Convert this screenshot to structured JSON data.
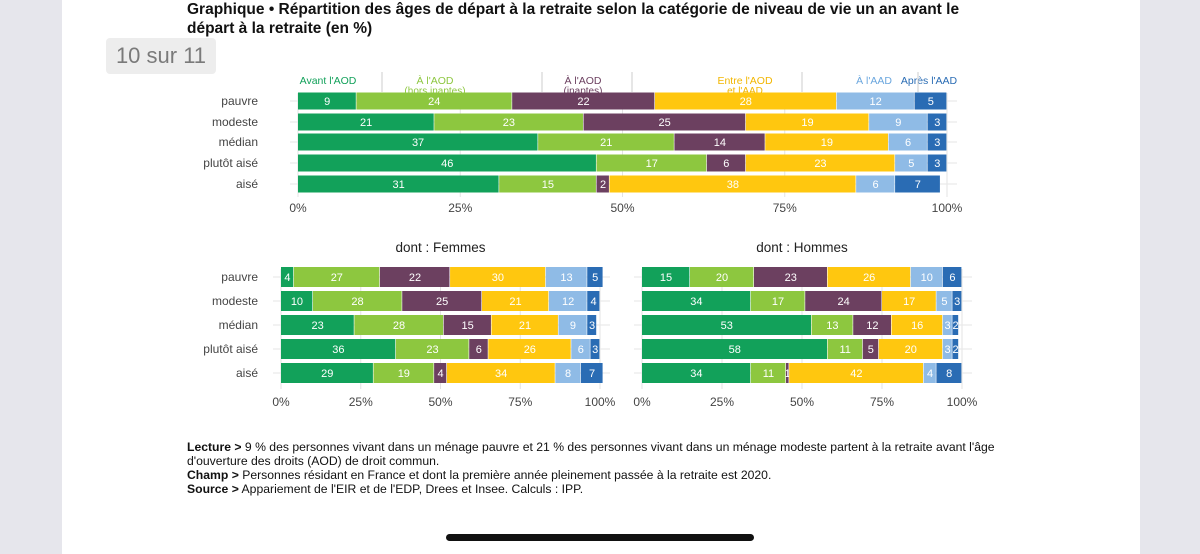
{
  "page": {
    "title": "Graphique • Répartition des âges de départ à la retraite selon la catégorie de niveau de vie un an avant le départ à la retraite (en %)",
    "indicator": "10 sur 11"
  },
  "colors": {
    "avant_aod": "#12a15a",
    "aod_hors_inaptes": "#8dc73f",
    "aod_inaptes": "#6c4060",
    "entre_aod_aad": "#ffc70f",
    "aad": "#8fbbe6",
    "apres_aad": "#2a6cb4",
    "label_inaptes": "#6c4060",
    "label_avant": "#12a15a",
    "label_hors": "#8dc73f",
    "label_entre": "#f2b600",
    "label_aad": "#6aa6de",
    "label_apres": "#2a6cb4"
  },
  "legend": [
    {
      "label": "Avant l'AOD",
      "color": "#12a15a"
    },
    {
      "label": "À l'AOD\n(hors inaptes)",
      "color": "#8dc73f"
    },
    {
      "label": "À l'AOD\n(inaptes)",
      "color": "#6c4060"
    },
    {
      "label": "Entre l'AOD\net l'AAD",
      "color": "#f2b600"
    },
    {
      "label": "À l'AAD",
      "color": "#6aa6de"
    },
    {
      "label": "Après l'AAD",
      "color": "#2a6cb4"
    }
  ],
  "chart_data": [
    {
      "type": "bar",
      "orientation": "horizontal",
      "stacked": true,
      "title": "",
      "categories": [
        "pauvre",
        "modeste",
        "médian",
        "plutôt aisé",
        "aisé"
      ],
      "xlim": [
        0,
        100
      ],
      "x_ticks": [
        "0%",
        "25%",
        "50%",
        "75%",
        "100%"
      ],
      "values": [
        [
          9,
          24,
          22,
          28,
          12,
          5
        ],
        [
          21,
          23,
          25,
          19,
          9,
          3
        ],
        [
          37,
          21,
          14,
          19,
          6,
          3
        ],
        [
          46,
          17,
          6,
          23,
          5,
          3
        ],
        [
          31,
          15,
          2,
          38,
          6,
          7
        ]
      ]
    },
    {
      "type": "bar",
      "orientation": "horizontal",
      "stacked": true,
      "title": "dont : Femmes",
      "categories": [
        "pauvre",
        "modeste",
        "médian",
        "plutôt aisé",
        "aisé"
      ],
      "xlim": [
        0,
        100
      ],
      "x_ticks": [
        "0%",
        "25%",
        "50%",
        "75%",
        "100%"
      ],
      "values": [
        [
          4,
          27,
          22,
          30,
          13,
          5
        ],
        [
          10,
          28,
          25,
          21,
          12,
          4
        ],
        [
          23,
          28,
          15,
          21,
          9,
          3
        ],
        [
          36,
          23,
          6,
          26,
          6,
          3
        ],
        [
          29,
          19,
          4,
          34,
          8,
          7
        ]
      ]
    },
    {
      "type": "bar",
      "orientation": "horizontal",
      "stacked": true,
      "title": "dont : Hommes",
      "categories": [
        "pauvre",
        "modeste",
        "médian",
        "plutôt aisé",
        "aisé"
      ],
      "xlim": [
        0,
        100
      ],
      "x_ticks": [
        "0%",
        "25%",
        "50%",
        "75%",
        "100%"
      ],
      "values": [
        [
          15,
          20,
          23,
          26,
          10,
          6
        ],
        [
          34,
          17,
          24,
          17,
          5,
          3
        ],
        [
          53,
          13,
          12,
          16,
          3,
          2
        ],
        [
          58,
          11,
          5,
          20,
          3,
          2
        ],
        [
          34,
          11,
          1,
          42,
          4,
          8
        ]
      ]
    }
  ],
  "footnotes": {
    "lecture_label": "Lecture >",
    "lecture_text": " 9 % des personnes vivant dans un ménage pauvre et 21 % des personnes vivant dans un ménage modeste partent à la retraite avant l'âge d'ouverture des droits (AOD) de droit commun.",
    "champ_label": "Champ >",
    "champ_text": " Personnes résidant en France et dont la première année pleinement passée à la retraite est 2020.",
    "source_label": "Source >",
    "source_text": " Appariement de l'EIR et de l'EDP, Drees et Insee. Calculs : IPP."
  }
}
